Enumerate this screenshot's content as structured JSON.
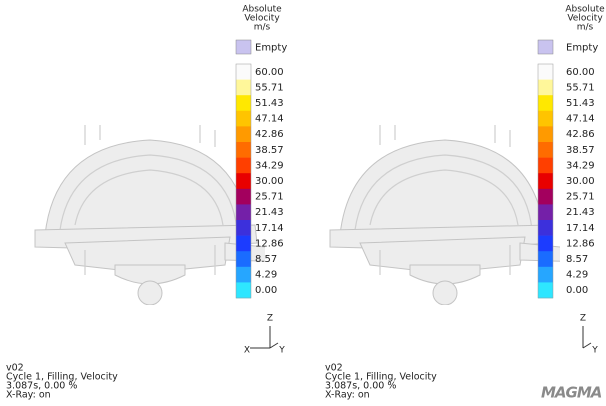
{
  "panels": [
    {
      "legend": {
        "title": [
          "Absolute",
          "Velocity",
          "m/s"
        ],
        "empty": "Empty",
        "empty_color": "#c9c3ef",
        "labels": [
          "60.00",
          "55.71",
          "51.43",
          "47.14",
          "42.86",
          "38.57",
          "34.29",
          "30.00",
          "25.71",
          "21.43",
          "17.14",
          "12.86",
          "8.57",
          "4.29",
          "0.00"
        ],
        "colors": [
          "#fbfbfb",
          "#fff79a",
          "#ffe800",
          "#ffc400",
          "#ff9a00",
          "#ff6c00",
          "#ff3f00",
          "#e80000",
          "#a3005e",
          "#7420a8",
          "#3c30dc",
          "#1c3cff",
          "#1a6cff",
          "#26a6ff",
          "#2ee6ff"
        ]
      },
      "footer": [
        "v02",
        "Cycle 1, Filling, Velocity",
        "3.087s, 0.00 %",
        "X-Ray: on"
      ],
      "axes": {
        "z": "Z",
        "x": "X",
        "y": "Y"
      }
    },
    {
      "legend": {
        "title": [
          "Absolute",
          "Velocity",
          "m/s"
        ],
        "empty": "Empty",
        "empty_color": "#c9c3ef",
        "labels": [
          "60.00",
          "55.71",
          "51.43",
          "47.14",
          "42.86",
          "38.57",
          "34.29",
          "30.00",
          "25.71",
          "21.43",
          "17.14",
          "12.86",
          "8.57",
          "4.29",
          "0.00"
        ],
        "colors": [
          "#fbfbfb",
          "#fff79a",
          "#ffe800",
          "#ffc400",
          "#ff9a00",
          "#ff6c00",
          "#ff3f00",
          "#e80000",
          "#a3005e",
          "#7420a8",
          "#3c30dc",
          "#1c3cff",
          "#1a6cff",
          "#26a6ff",
          "#2ee6ff"
        ]
      },
      "footer": [
        "v02",
        "Cycle 1, Filling, Velocity",
        "3.087s, 0.00 %",
        "X-Ray: on"
      ],
      "axes": {
        "z": "Z",
        "y": "Y"
      }
    }
  ],
  "logo": "MAGMA"
}
